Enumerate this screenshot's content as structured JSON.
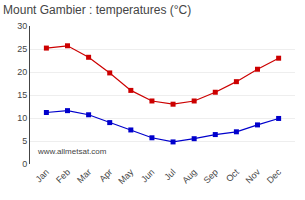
{
  "chart_data": {
    "type": "line",
    "title": "Mount Gambier : temperatures (°C)",
    "categories": [
      "Jan",
      "Feb",
      "Mar",
      "Apr",
      "May",
      "Jun",
      "Jul",
      "Aug",
      "Sep",
      "Oct",
      "Nov",
      "Dec"
    ],
    "series": [
      {
        "color": "#cc0000",
        "values": [
          25.2,
          25.7,
          23.2,
          19.8,
          16.0,
          13.7,
          13.0,
          13.7,
          15.6,
          17.9,
          20.6,
          23.0
        ]
      },
      {
        "color": "#0000cc",
        "values": [
          11.2,
          11.6,
          10.7,
          9.0,
          7.4,
          5.7,
          4.8,
          5.5,
          6.4,
          7.0,
          8.5,
          9.9
        ]
      }
    ],
    "ylim": [
      0,
      30
    ],
    "yticks": [
      0,
      5,
      10,
      15,
      20,
      25,
      30
    ],
    "grid": true,
    "marker": "square",
    "annotations": [
      "www.allmetsat.com"
    ]
  }
}
